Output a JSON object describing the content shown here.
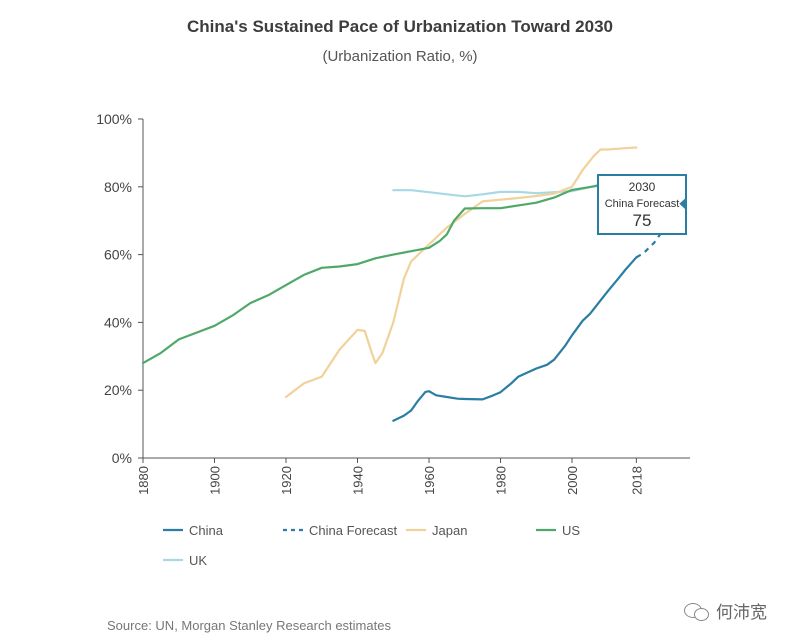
{
  "chart_data": {
    "type": "line",
    "title": "China's Sustained Pace of Urbanization Toward 2030",
    "subtitle": "(Urbanization Ratio, %)",
    "xlim": [
      1880,
      2033
    ],
    "ylim": [
      0,
      100
    ],
    "x_ticks": [
      "1880",
      "1900",
      "1920",
      "1940",
      "1960",
      "1980",
      "2000",
      "2018"
    ],
    "x_tick_values": [
      1880,
      1900,
      1920,
      1940,
      1960,
      1980,
      2000,
      2018
    ],
    "y_ticks": [
      "0%",
      "20%",
      "40%",
      "60%",
      "80%",
      "100%"
    ],
    "y_tick_values": [
      0,
      20,
      40,
      60,
      80,
      100
    ],
    "grid": false,
    "legend_position": "bottom",
    "series": [
      {
        "name": "UK",
        "color": "#a8d8e3",
        "dash": false,
        "points": [
          [
            1950,
            79
          ],
          [
            1955,
            79
          ],
          [
            1960,
            78.4
          ],
          [
            1965,
            77.8
          ],
          [
            1970,
            77.2
          ],
          [
            1975,
            77.8
          ],
          [
            1980,
            78.5
          ],
          [
            1985,
            78.5
          ],
          [
            1990,
            78.1
          ],
          [
            1995,
            78.4
          ],
          [
            2000,
            78.7
          ],
          [
            2005,
            79.9
          ],
          [
            2010,
            81.3
          ],
          [
            2015,
            82.3
          ],
          [
            2018,
            83.4
          ]
        ]
      },
      {
        "name": "Japan",
        "color": "#f0d29a",
        "dash": false,
        "points": [
          [
            1920,
            18
          ],
          [
            1925,
            22
          ],
          [
            1930,
            24
          ],
          [
            1935,
            32
          ],
          [
            1940,
            37.8
          ],
          [
            1942,
            37.5
          ],
          [
            1944,
            31
          ],
          [
            1945,
            28
          ],
          [
            1947,
            31
          ],
          [
            1950,
            40
          ],
          [
            1953,
            53
          ],
          [
            1955,
            58
          ],
          [
            1960,
            63
          ],
          [
            1965,
            68
          ],
          [
            1970,
            72
          ],
          [
            1975,
            75.7
          ],
          [
            1980,
            76.2
          ],
          [
            1985,
            76.7
          ],
          [
            1990,
            77.3
          ],
          [
            1995,
            78
          ],
          [
            2000,
            80
          ],
          [
            2003,
            85
          ],
          [
            2006,
            89
          ],
          [
            2008,
            91
          ],
          [
            2010,
            91
          ],
          [
            2015,
            91.4
          ],
          [
            2018,
            91.6
          ]
        ]
      },
      {
        "name": "US",
        "color": "#4fa86a",
        "dash": false,
        "points": [
          [
            1880,
            28
          ],
          [
            1885,
            31
          ],
          [
            1890,
            35
          ],
          [
            1895,
            37
          ],
          [
            1900,
            39
          ],
          [
            1905,
            42
          ],
          [
            1910,
            45.7
          ],
          [
            1915,
            48
          ],
          [
            1920,
            51
          ],
          [
            1925,
            54
          ],
          [
            1930,
            56.1
          ],
          [
            1935,
            56.5
          ],
          [
            1940,
            57.2
          ],
          [
            1945,
            58.9
          ],
          [
            1950,
            60
          ],
          [
            1955,
            61
          ],
          [
            1960,
            62
          ],
          [
            1963,
            64
          ],
          [
            1965,
            66
          ],
          [
            1967,
            70
          ],
          [
            1970,
            73.6
          ],
          [
            1975,
            73.7
          ],
          [
            1980,
            73.7
          ],
          [
            1985,
            74.5
          ],
          [
            1990,
            75.3
          ],
          [
            1995,
            76.8
          ],
          [
            2000,
            79.1
          ],
          [
            2005,
            79.9
          ],
          [
            2010,
            80.8
          ],
          [
            2015,
            81.7
          ],
          [
            2018,
            82.3
          ]
        ]
      },
      {
        "name": "China",
        "color": "#2a7da3",
        "dash": false,
        "points": [
          [
            1950,
            11
          ],
          [
            1953,
            12.5
          ],
          [
            1955,
            14
          ],
          [
            1957,
            17
          ],
          [
            1959,
            19.5
          ],
          [
            1960,
            19.7
          ],
          [
            1962,
            18.5
          ],
          [
            1965,
            18
          ],
          [
            1968,
            17.5
          ],
          [
            1970,
            17.4
          ],
          [
            1975,
            17.3
          ],
          [
            1978,
            18.5
          ],
          [
            1980,
            19.4
          ],
          [
            1983,
            22
          ],
          [
            1985,
            24
          ],
          [
            1990,
            26.4
          ],
          [
            1993,
            27.5
          ],
          [
            1995,
            29
          ],
          [
            1998,
            33
          ],
          [
            2000,
            36.2
          ],
          [
            2003,
            40.5
          ],
          [
            2005,
            42.5
          ],
          [
            2010,
            49.2
          ],
          [
            2013,
            53
          ],
          [
            2015,
            55.6
          ],
          [
            2018,
            59.2
          ]
        ]
      },
      {
        "name": "China Forecast",
        "color": "#2a7da3",
        "dash": true,
        "points": [
          [
            2018,
            59.2
          ],
          [
            2020,
            60.4
          ],
          [
            2023,
            63.5
          ],
          [
            2026,
            68
          ],
          [
            2030,
            75
          ]
        ]
      }
    ],
    "annotation": {
      "year_label": "2030",
      "label": "China Forecast",
      "value_label": "75",
      "value": 75,
      "x": 2030
    }
  },
  "source": "Source: UN, Morgan Stanley Research estimates",
  "watermark": "何沛宽"
}
